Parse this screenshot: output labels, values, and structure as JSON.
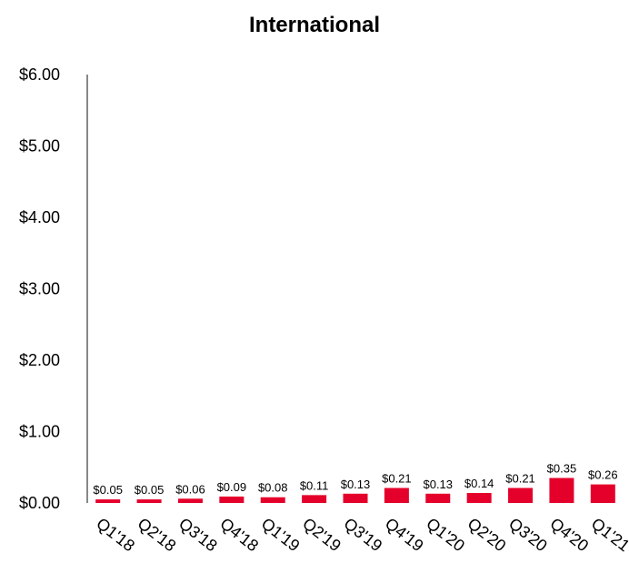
{
  "chart_data": {
    "type": "bar",
    "title": "International",
    "xlabel": "",
    "ylabel": "",
    "categories": [
      "Q1'18",
      "Q2'18",
      "Q3'18",
      "Q4'18",
      "Q1'19",
      "Q2'19",
      "Q3'19",
      "Q4'19",
      "Q1'20",
      "Q2'20",
      "Q3'20",
      "Q4'20",
      "Q1'21"
    ],
    "values": [
      0.05,
      0.05,
      0.06,
      0.09,
      0.08,
      0.11,
      0.13,
      0.21,
      0.13,
      0.14,
      0.21,
      0.35,
      0.26
    ],
    "data_labels": [
      "$0.05",
      "$0.05",
      "$0.06",
      "$0.09",
      "$0.08",
      "$0.11",
      "$0.13",
      "$0.21",
      "$0.13",
      "$0.14",
      "$0.21",
      "$0.35",
      "$0.26"
    ],
    "ylim": [
      0,
      6
    ],
    "y_ticks": [
      0,
      1,
      2,
      3,
      4,
      5,
      6
    ],
    "y_tick_labels": [
      "$0.00",
      "$1.00",
      "$2.00",
      "$3.00",
      "$4.00",
      "$5.00",
      "$6.00"
    ],
    "grid": false,
    "legend": "none",
    "colors": {
      "bar": "#e4002b",
      "axis": "#888888",
      "text": "#000000"
    }
  }
}
